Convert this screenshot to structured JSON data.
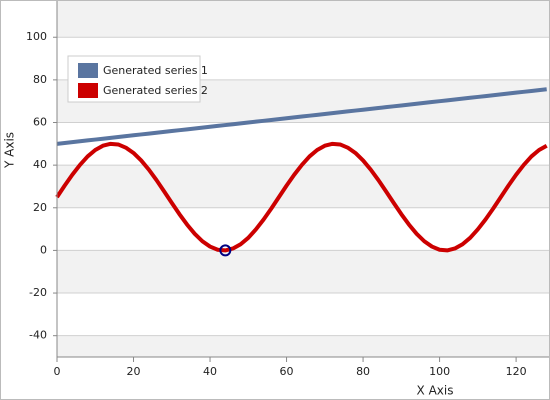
{
  "chart_data": {
    "type": "line",
    "x_label": "X Axis",
    "y_label": "Y Axis",
    "x": [
      0,
      2,
      4,
      6,
      8,
      10,
      12,
      14,
      16,
      18,
      20,
      22,
      24,
      26,
      28,
      30,
      32,
      34,
      36,
      38,
      40,
      42,
      44,
      46,
      48,
      50,
      52,
      54,
      56,
      58,
      60,
      62,
      64,
      66,
      68,
      70,
      72,
      74,
      76,
      78,
      80,
      82,
      84,
      86,
      88,
      90,
      92,
      94,
      96,
      98,
      100,
      102,
      104,
      106,
      108,
      110,
      112,
      114,
      116,
      118,
      120,
      122,
      124,
      126,
      128
    ],
    "series": [
      {
        "name": "Generated series 1",
        "color": "#5a75a0",
        "values": [
          50,
          50.4,
          50.8,
          51.2,
          51.6,
          52,
          52.4,
          52.8,
          53.2,
          53.6,
          54,
          54.4,
          54.8,
          55.2,
          55.6,
          56,
          56.4,
          56.8,
          57.2,
          57.6,
          58,
          58.4,
          58.8,
          59.2,
          59.6,
          60,
          60.4,
          60.8,
          61.2,
          61.6,
          62,
          62.4,
          62.8,
          63.2,
          63.6,
          64,
          64.4,
          64.8,
          65.2,
          65.6,
          66,
          66.4,
          66.8,
          67.2,
          67.6,
          68,
          68.4,
          68.8,
          69.2,
          69.6,
          70,
          70.4,
          70.8,
          71.2,
          71.6,
          72,
          72.4,
          72.8,
          73.2,
          73.6,
          74,
          74.4,
          74.8,
          75.2,
          75.6
        ]
      },
      {
        "name": "Generated series 2",
        "color": "#cc0000",
        "values": [
          25,
          30.4,
          35.5,
          40.1,
          44.1,
          47.1,
          49.1,
          50,
          49.7,
          48.2,
          45.7,
          42.2,
          37.9,
          33,
          27.7,
          22.3,
          17,
          12.1,
          7.8,
          4.3,
          1.8,
          0.3,
          0,
          0.9,
          2.9,
          5.9,
          9.9,
          14.5,
          19.6,
          25,
          30.4,
          35.5,
          40.1,
          44.1,
          47.1,
          49.1,
          50,
          49.7,
          48.2,
          45.7,
          42.2,
          37.9,
          33,
          27.7,
          22.3,
          17,
          12.1,
          7.8,
          4.3,
          1.8,
          0.3,
          0,
          0.9,
          2.9,
          5.9,
          9.9,
          14.5,
          19.6,
          25,
          30.4,
          35.5,
          40.1,
          44.1,
          47.1,
          49.1
        ]
      }
    ],
    "highlight": {
      "series": 1,
      "index": 22,
      "color": "#000080"
    },
    "xlim": [
      0,
      128.6
    ],
    "xticks": [
      0,
      20,
      40,
      60,
      80,
      100,
      120
    ],
    "ylim": [
      -50,
      117
    ],
    "yticks": [
      -40,
      -20,
      0,
      20,
      40,
      60,
      80,
      100
    ],
    "grid": true,
    "legend": "upper left"
  }
}
